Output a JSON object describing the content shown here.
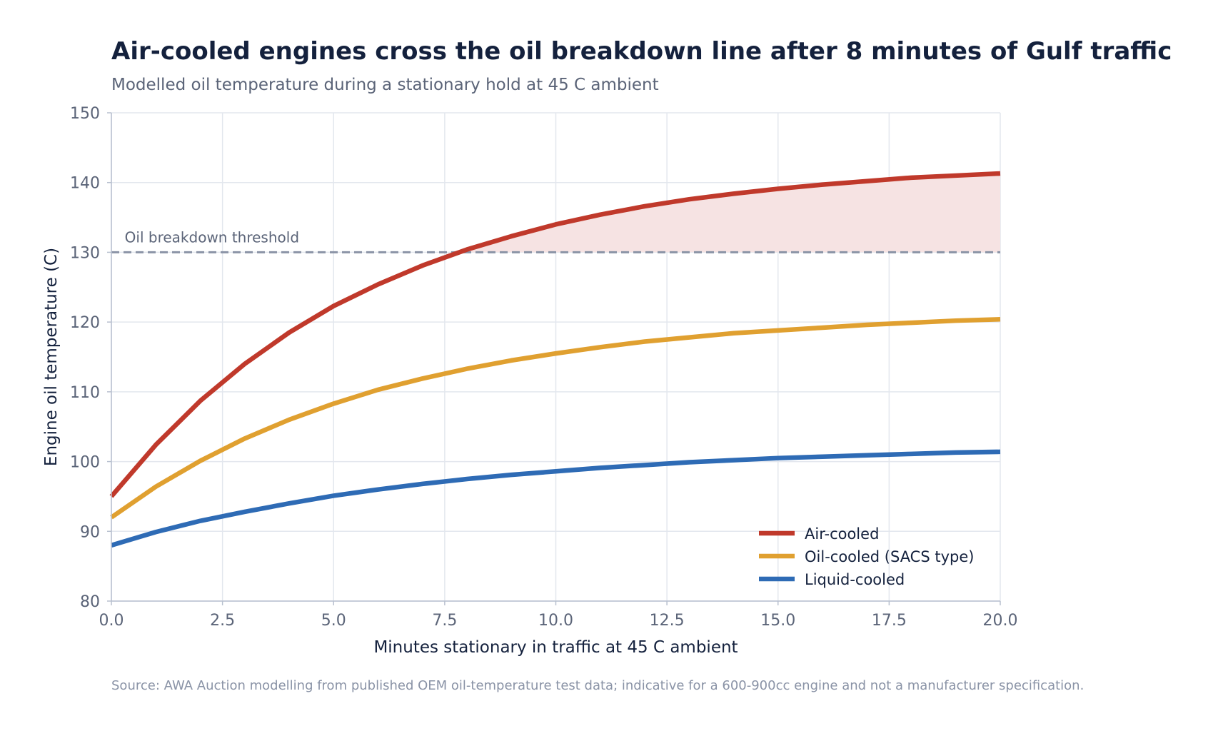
{
  "chart_data": {
    "type": "line",
    "title": "Air-cooled engines cross the oil breakdown line after 8 minutes of Gulf traffic",
    "subtitle": "Modelled oil temperature during a stationary hold at 45 C ambient",
    "xlabel": "Minutes stationary in traffic at 45 C ambient",
    "ylabel": "Engine oil temperature (C)",
    "xlim": [
      0,
      20
    ],
    "ylim": [
      80,
      150
    ],
    "x_ticks": [
      "0.0",
      "2.5",
      "5.0",
      "7.5",
      "10.0",
      "12.5",
      "15.0",
      "17.5",
      "20.0"
    ],
    "y_ticks": [
      "80",
      "90",
      "100",
      "110",
      "120",
      "130",
      "140",
      "150"
    ],
    "grid": true,
    "legend_position": "bottom-right",
    "x": [
      0,
      1,
      2,
      3,
      4,
      5,
      6,
      7,
      8,
      9,
      10,
      11,
      12,
      13,
      14,
      15,
      16,
      17,
      18,
      19,
      20
    ],
    "series": [
      {
        "name": "Air-cooled",
        "color": "#c0392b",
        "values": [
          95.0,
          102.4,
          108.7,
          114.0,
          118.5,
          122.3,
          125.4,
          128.1,
          130.4,
          132.3,
          134.0,
          135.4,
          136.6,
          137.6,
          138.4,
          139.1,
          139.7,
          140.2,
          140.7,
          141.0,
          141.3
        ]
      },
      {
        "name": "Oil-cooled (SACS type)",
        "color": "#e0a030",
        "values": [
          92.0,
          96.4,
          100.1,
          103.3,
          106.0,
          108.3,
          110.3,
          111.9,
          113.3,
          114.5,
          115.5,
          116.4,
          117.2,
          117.8,
          118.4,
          118.8,
          119.2,
          119.6,
          119.9,
          120.2,
          120.4
        ]
      },
      {
        "name": "Liquid-cooled",
        "color": "#2e6bb5",
        "values": [
          88.0,
          89.9,
          91.5,
          92.8,
          94.0,
          95.1,
          96.0,
          96.8,
          97.5,
          98.1,
          98.6,
          99.1,
          99.5,
          99.9,
          100.2,
          100.5,
          100.7,
          100.9,
          101.1,
          101.3,
          101.4
        ]
      }
    ],
    "threshold": {
      "value": 130,
      "label": "Oil breakdown threshold",
      "color": "#8a93a6"
    },
    "fill_above_threshold_color": "#f6e3e3",
    "source": "Source: AWA Auction modelling from published OEM oil-temperature test data; indicative for a 600-900cc engine and not a manufacturer specification."
  }
}
